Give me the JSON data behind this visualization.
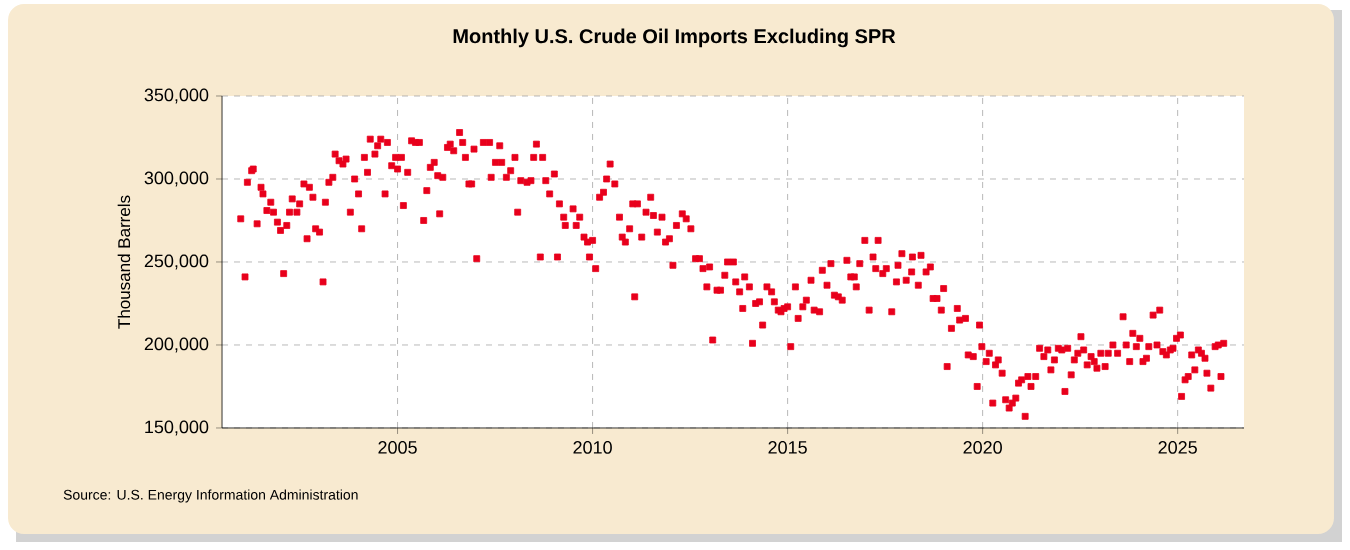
{
  "chart_data": {
    "type": "scatter",
    "title": "Monthly U.S. Crude Oil Imports Excluding SPR",
    "ylabel": "Thousand Barrels",
    "annotations": [
      "Source: U.S. Energy Information Administration"
    ],
    "color": "#e8001c",
    "marker": "square",
    "grid": true,
    "xlim": [
      2000.5,
      2026.7
    ],
    "xticks": [
      2005,
      2010,
      2015,
      2020,
      2025
    ],
    "ylim": [
      150000,
      350000
    ],
    "yticks": [
      {
        "value": 150000,
        "label": "150,000"
      },
      {
        "value": 200000,
        "label": "200,000"
      },
      {
        "value": 250000,
        "label": "250,000"
      },
      {
        "value": 300000,
        "label": "300,000"
      },
      {
        "value": 350000,
        "label": "350,000"
      }
    ],
    "x": [
      2000.98,
      2001.09,
      2001.15,
      2001.26,
      2001.3,
      2001.4,
      2001.5,
      2001.55,
      2001.65,
      2001.75,
      2001.82,
      2001.92,
      2002.0,
      2002.08,
      2002.16,
      2002.23,
      2002.3,
      2002.42,
      2002.49,
      2002.6,
      2002.68,
      2002.74,
      2002.83,
      2002.9,
      2003.0,
      2003.09,
      2003.15,
      2003.24,
      2003.34,
      2003.4,
      2003.5,
      2003.6,
      2003.68,
      2003.79,
      2003.9,
      2004.0,
      2004.08,
      2004.15,
      2004.23,
      2004.3,
      2004.42,
      2004.49,
      2004.57,
      2004.68,
      2004.74,
      2004.85,
      2004.95,
      2005.0,
      2005.1,
      2005.15,
      2005.26,
      2005.36,
      2005.46,
      2005.56,
      2005.67,
      2005.75,
      2005.84,
      2005.94,
      2006.03,
      2006.08,
      2006.16,
      2006.28,
      2006.35,
      2006.44,
      2006.59,
      2006.67,
      2006.74,
      2006.83,
      2006.9,
      2006.96,
      2007.03,
      2007.2,
      2007.36,
      2007.4,
      2007.51,
      2007.62,
      2007.67,
      2007.79,
      2007.9,
      2008.01,
      2008.08,
      2008.16,
      2008.32,
      2008.42,
      2008.49,
      2008.56,
      2008.66,
      2008.72,
      2008.8,
      2008.9,
      2009.02,
      2009.1,
      2009.15,
      2009.26,
      2009.3,
      2009.5,
      2009.58,
      2009.67,
      2009.78,
      2009.87,
      2009.92,
      2010.0,
      2010.08,
      2010.18,
      2010.28,
      2010.36,
      2010.45,
      2010.57,
      2010.69,
      2010.76,
      2010.84,
      2010.95,
      2011.03,
      2011.08,
      2011.15,
      2011.26,
      2011.37,
      2011.49,
      2011.56,
      2011.66,
      2011.78,
      2011.87,
      2011.97,
      2012.06,
      2012.15,
      2012.3,
      2012.4,
      2012.52,
      2012.64,
      2012.74,
      2012.83,
      2012.93,
      2013.0,
      2013.08,
      2013.19,
      2013.28,
      2013.39,
      2013.46,
      2013.61,
      2013.67,
      2013.77,
      2013.85,
      2013.9,
      2014.02,
      2014.1,
      2014.18,
      2014.28,
      2014.36,
      2014.47,
      2014.59,
      2014.66,
      2014.76,
      2014.83,
      2014.91,
      2015.0,
      2015.08,
      2015.2,
      2015.27,
      2015.39,
      2015.48,
      2015.6,
      2015.68,
      2015.82,
      2015.89,
      2016.01,
      2016.11,
      2016.2,
      2016.3,
      2016.4,
      2016.52,
      2016.62,
      2016.71,
      2016.76,
      2016.85,
      2016.98,
      2017.09,
      2017.19,
      2017.26,
      2017.32,
      2017.44,
      2017.53,
      2017.67,
      2017.79,
      2017.83,
      2017.93,
      2018.04,
      2018.18,
      2018.2,
      2018.35,
      2018.42,
      2018.55,
      2018.66,
      2018.73,
      2018.83,
      2018.94,
      2019.0,
      2019.09,
      2019.2,
      2019.35,
      2019.41,
      2019.56,
      2019.63,
      2019.76,
      2019.86,
      2019.92,
      2019.98,
      2020.09,
      2020.17,
      2020.26,
      2020.33,
      2020.4,
      2020.5,
      2020.59,
      2020.68,
      2020.76,
      2020.85,
      2020.92,
      2021.0,
      2021.09,
      2021.16,
      2021.24,
      2021.36,
      2021.46,
      2021.57,
      2021.67,
      2021.75,
      2021.84,
      2021.94,
      2022.03,
      2022.11,
      2022.18,
      2022.27,
      2022.35,
      2022.44,
      2022.52,
      2022.59,
      2022.68,
      2022.78,
      2022.86,
      2022.93,
      2023.03,
      2023.14,
      2023.22,
      2023.34,
      2023.46,
      2023.6,
      2023.68,
      2023.77,
      2023.85,
      2023.94,
      2024.03,
      2024.11,
      2024.2,
      2024.26,
      2024.37,
      2024.47,
      2024.54,
      2024.62,
      2024.71,
      2024.81,
      2024.88,
      2024.97,
      2025.07,
      2025.1,
      2025.19,
      2025.27,
      2025.36,
      2025.44,
      2025.53,
      2025.61,
      2025.7,
      2025.75,
      2025.85,
      2025.96,
      2026.04,
      2026.11,
      2026.18
    ],
    "values": [
      276000,
      241000,
      298000,
      305000,
      306000,
      273000,
      295000,
      291000,
      281000,
      286000,
      280000,
      274000,
      269000,
      243000,
      272000,
      280000,
      288000,
      280000,
      285000,
      297000,
      264000,
      295000,
      289000,
      270000,
      268000,
      238000,
      286000,
      298000,
      301000,
      315000,
      311000,
      309000,
      312000,
      280000,
      300000,
      291000,
      270000,
      313000,
      304000,
      324000,
      315000,
      320000,
      324000,
      291000,
      322000,
      308000,
      313000,
      306000,
      313000,
      284000,
      304000,
      323000,
      322000,
      322000,
      275000,
      293000,
      307000,
      310000,
      302000,
      279000,
      301000,
      319000,
      321000,
      317000,
      328000,
      322000,
      313000,
      297000,
      297000,
      318000,
      252000,
      322000,
      322000,
      301000,
      310000,
      320000,
      310000,
      301000,
      305000,
      313000,
      280000,
      299000,
      298000,
      299000,
      313000,
      321000,
      253000,
      313000,
      299000,
      291000,
      303000,
      253000,
      285000,
      277000,
      272000,
      282000,
      272000,
      277000,
      265000,
      262000,
      253000,
      263000,
      246000,
      289000,
      292000,
      300000,
      309000,
      297000,
      277000,
      265000,
      262000,
      270000,
      285000,
      229000,
      285000,
      265000,
      280000,
      289000,
      278000,
      268000,
      277000,
      262000,
      264000,
      248000,
      272000,
      279000,
      276000,
      270000,
      252000,
      252000,
      246000,
      235000,
      247000,
      203000,
      233000,
      233000,
      242000,
      250000,
      250000,
      238000,
      232000,
      222000,
      241000,
      235000,
      201000,
      225000,
      226000,
      212000,
      235000,
      232000,
      226000,
      221000,
      220000,
      222000,
      223000,
      199000,
      235000,
      216000,
      223000,
      227000,
      239000,
      221000,
      220000,
      245000,
      236000,
      249000,
      230000,
      229000,
      227000,
      251000,
      241000,
      241000,
      235000,
      249000,
      263000,
      221000,
      253000,
      246000,
      263000,
      243000,
      246000,
      220000,
      238000,
      248000,
      255000,
      239000,
      244000,
      253000,
      236000,
      254000,
      244000,
      247000,
      228000,
      228000,
      221000,
      234000,
      187000,
      210000,
      222000,
      215000,
      216000,
      194000,
      193000,
      175000,
      212000,
      199000,
      190000,
      195000,
      165000,
      188000,
      191000,
      183000,
      167000,
      162000,
      165000,
      168000,
      177000,
      179000,
      157000,
      181000,
      175000,
      181000,
      198000,
      193000,
      197000,
      185000,
      191000,
      198000,
      197000,
      172000,
      198000,
      182000,
      191000,
      195000,
      205000,
      197000,
      188000,
      193000,
      190000,
      186000,
      195000,
      187000,
      195000,
      200000,
      195000,
      217000,
      200000,
      190000,
      207000,
      199000,
      204000,
      190000,
      192000,
      199000,
      218000,
      200000,
      221000,
      196000,
      194000,
      197000,
      198000,
      204000,
      206000,
      169000,
      179000,
      181000,
      194000,
      185000,
      197000,
      195000,
      192000,
      183000,
      174000,
      199000,
      200000,
      181000,
      201000
    ]
  }
}
